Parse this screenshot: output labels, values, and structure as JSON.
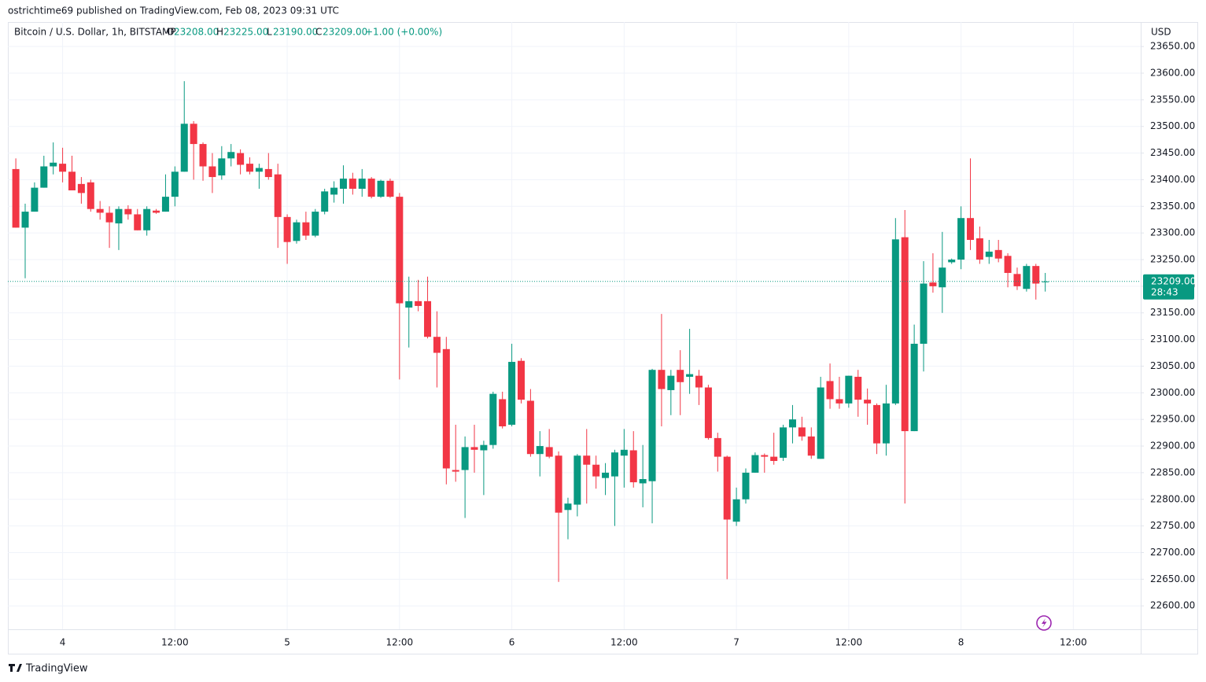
{
  "published": "ostrichtime69 published on TradingView.com, Feb 08, 2023 09:31 UTC",
  "chart_data": {
    "type": "candlestick",
    "title": "Bitcoin / U.S. Dollar, 1h, BITSTAMP",
    "ohlc_header": [
      {
        "key": "O",
        "value": 23208,
        "label": "23208.00"
      },
      {
        "key": "H",
        "value": 23225,
        "label": "23225.00"
      },
      {
        "key": "L",
        "value": 23190,
        "label": "23190.00"
      },
      {
        "key": "C",
        "value": 23209,
        "label": "23209.00"
      }
    ],
    "change": "+1.00 (+0.00%)",
    "y_axis_label": "USD",
    "up_color": "#089981",
    "down_color": "#f23645",
    "open": [
      23420,
      23310,
      23340,
      23385,
      23425,
      23430,
      23415,
      23392,
      23395,
      23345,
      23338,
      23318,
      23345,
      23335,
      23305,
      23342,
      23340,
      23368,
      23415,
      23505,
      23467,
      23425,
      23408,
      23440,
      23450,
      23430,
      23415,
      23420,
      23410,
      23330,
      23285,
      23320,
      23295,
      23340,
      23372,
      23383,
      23402,
      23383,
      23402,
      23368,
      23398,
      23368,
      23160,
      23172,
      23172,
      23105,
      23082,
      22855,
      22855,
      22898,
      22892,
      22902,
      22988,
      22940,
      23060,
      22985,
      22885,
      22898,
      22882,
      22780,
      22790,
      22882,
      22865,
      22840,
      22843,
      22882,
      22892,
      22830,
      22834,
      23043,
      23005,
      23043,
      23030,
      23032,
      23010,
      22915,
      22880,
      22758,
      22800,
      22850,
      22883,
      22880,
      22878,
      22935,
      22935,
      22918,
      22876,
      23022,
      22988,
      22980,
      23030,
      22987,
      22977,
      22905,
      22980,
      23292,
      22928,
      23092,
      23207,
      23198,
      23245,
      23250,
      23328,
      23290,
      23255,
      23268,
      23257,
      23223,
      23195,
      23238,
      23208
    ],
    "high": [
      23440,
      23355,
      23395,
      23445,
      23470,
      23460,
      23445,
      23405,
      23400,
      23360,
      23350,
      23350,
      23352,
      23345,
      23350,
      23345,
      23410,
      23425,
      23585,
      23510,
      23470,
      23450,
      23463,
      23467,
      23457,
      23442,
      23430,
      23450,
      23430,
      23335,
      23325,
      23340,
      23345,
      23383,
      23397,
      23427,
      23413,
      23420,
      23405,
      23400,
      23402,
      23375,
      23218,
      23212,
      23218,
      23153,
      23105,
      22940,
      22918,
      22940,
      22910,
      23002,
      23002,
      23092,
      23065,
      23007,
      22928,
      22932,
      22890,
      22803,
      22885,
      22932,
      22882,
      22868,
      22893,
      22932,
      22928,
      22902,
      23045,
      23148,
      23043,
      23080,
      23120,
      23043,
      23015,
      22925,
      22882,
      22822,
      22858,
      22888,
      22886,
      22925,
      22940,
      22977,
      22955,
      22935,
      23030,
      23055,
      23030,
      23032,
      23043,
      23008,
      22980,
      23015,
      23328,
      23343,
      23128,
      23247,
      23262,
      23302,
      23252,
      23350,
      23440,
      23312,
      23287,
      23287,
      23262,
      23235,
      23242,
      23242,
      23225
    ],
    "low": [
      23310,
      23215,
      23340,
      23385,
      23410,
      23395,
      23380,
      23355,
      23340,
      23325,
      23272,
      23268,
      23325,
      23305,
      23295,
      23336,
      23340,
      23350,
      23415,
      23400,
      23398,
      23375,
      23400,
      23425,
      23410,
      23410,
      23383,
      23400,
      23272,
      23242,
      23280,
      23287,
      23292,
      23335,
      23357,
      23355,
      23372,
      23368,
      23365,
      23366,
      23366,
      23025,
      23085,
      23153,
      23102,
      23010,
      22828,
      22833,
      22765,
      22850,
      22808,
      22895,
      22933,
      22937,
      22980,
      22880,
      22843,
      22877,
      22645,
      22725,
      22768,
      22792,
      22820,
      22808,
      22750,
      22822,
      22822,
      22785,
      22755,
      22937,
      22958,
      22958,
      22998,
      22977,
      22912,
      22852,
      22650,
      22750,
      22792,
      22850,
      22850,
      22865,
      22872,
      22905,
      22910,
      22876,
      22876,
      22970,
      22970,
      22972,
      22955,
      22940,
      22885,
      22882,
      22977,
      22792,
      22928,
      23040,
      23188,
      23150,
      23242,
      23232,
      23268,
      23242,
      23242,
      23245,
      23198,
      23193,
      23190,
      23175,
      23190
    ],
    "close": [
      23310,
      23340,
      23385,
      23425,
      23432,
      23415,
      23380,
      23375,
      23345,
      23338,
      23320,
      23345,
      23335,
      23305,
      23345,
      23338,
      23368,
      23415,
      23505,
      23467,
      23425,
      23405,
      23440,
      23452,
      23428,
      23415,
      23422,
      23405,
      23330,
      23283,
      23320,
      23295,
      23340,
      23378,
      23385,
      23402,
      23383,
      23402,
      23368,
      23398,
      23368,
      23168,
      23172,
      23163,
      23105,
      23075,
      22858,
      22852,
      22898,
      22893,
      22902,
      22998,
      22937,
      23058,
      22987,
      22885,
      22900,
      22880,
      22775,
      22792,
      22882,
      22865,
      22843,
      22850,
      22888,
      22893,
      22832,
      22838,
      23043,
      23007,
      23032,
      23020,
      23035,
      23010,
      22915,
      22880,
      22762,
      22800,
      22850,
      22883,
      22880,
      22872,
      22935,
      22950,
      22918,
      22882,
      23010,
      22988,
      22980,
      23032,
      22987,
      22980,
      22905,
      22980,
      23288,
      22928,
      23092,
      23205,
      23200,
      23235,
      23250,
      23328,
      23287,
      23250,
      23265,
      23252,
      23225,
      23200,
      23238,
      23205,
      23209
    ],
    "xlim": [
      -0.85,
      120.2
    ],
    "xticks": [
      {
        "value": 5,
        "label": "4"
      },
      {
        "value": 17,
        "label": "12:00"
      },
      {
        "value": 29,
        "label": "5"
      },
      {
        "value": 41,
        "label": "12:00"
      },
      {
        "value": 53,
        "label": "6"
      },
      {
        "value": 65,
        "label": "12:00"
      },
      {
        "value": 77,
        "label": "7"
      },
      {
        "value": 89,
        "label": "12:00"
      },
      {
        "value": 101,
        "label": "8"
      },
      {
        "value": 113,
        "label": "12:00"
      }
    ],
    "ylim": [
      22556,
      23696
    ],
    "yticks": [
      {
        "value": 22600,
        "label": "22600.00"
      },
      {
        "value": 22650,
        "label": "22650.00"
      },
      {
        "value": 22700,
        "label": "22700.00"
      },
      {
        "value": 22750,
        "label": "22750.00"
      },
      {
        "value": 22800,
        "label": "22800.00"
      },
      {
        "value": 22850,
        "label": "22850.00"
      },
      {
        "value": 22900,
        "label": "22900.00"
      },
      {
        "value": 22950,
        "label": "22950.00"
      },
      {
        "value": 23000,
        "label": "23000.00"
      },
      {
        "value": 23050,
        "label": "23050.00"
      },
      {
        "value": 23100,
        "label": "23100.00"
      },
      {
        "value": 23150,
        "label": "23150.00"
      },
      {
        "value": 23200,
        "label": "23200.00"
      },
      {
        "value": 23250,
        "label": "23250.00"
      },
      {
        "value": 23300,
        "label": "23300.00"
      },
      {
        "value": 23350,
        "label": "23350.00"
      },
      {
        "value": 23400,
        "label": "23400.00"
      },
      {
        "value": 23450,
        "label": "23450.00"
      },
      {
        "value": 23500,
        "label": "23500.00"
      },
      {
        "value": 23550,
        "label": "23550.00"
      },
      {
        "value": 23600,
        "label": "23600.00"
      },
      {
        "value": 23650,
        "label": "23650.00"
      }
    ],
    "grid": true,
    "last_price": {
      "value": 23209,
      "label": "23209.00"
    },
    "countdown": "28:43"
  },
  "footer": {
    "brand": "TradingView"
  }
}
